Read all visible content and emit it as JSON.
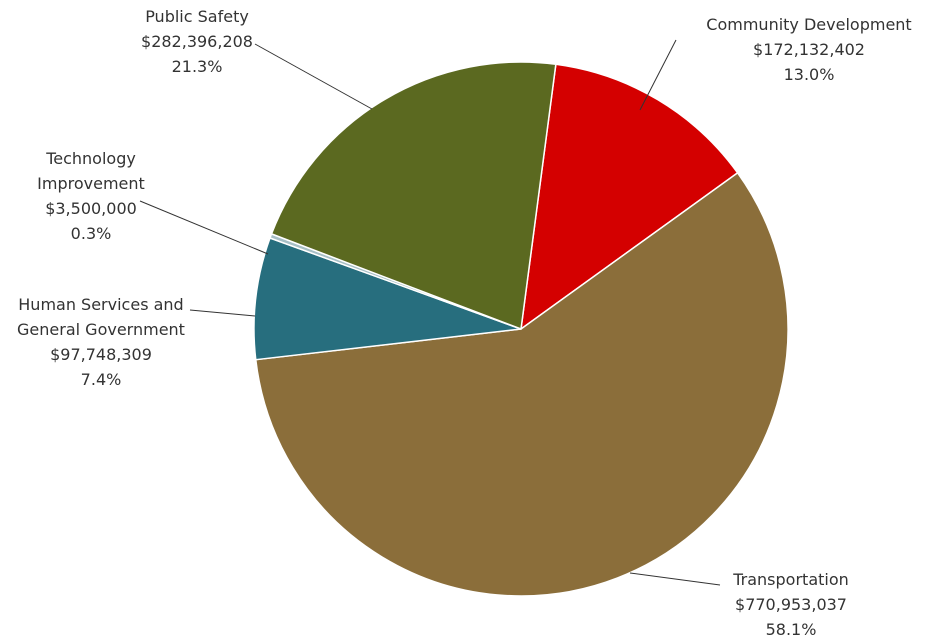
{
  "chart_data": {
    "type": "pie",
    "start_angle_deg": 7.5,
    "direction": "clockwise",
    "slices": [
      {
        "name": "Community Development",
        "label_lines": [
          "Community Development"
        ],
        "value_text": "$172,132,402",
        "percent_text": "13.0%",
        "value": 172132402,
        "percent": 13.0,
        "color": "#D40000"
      },
      {
        "name": "Transportation",
        "label_lines": [
          "Transportation"
        ],
        "value_text": "$770,953,037",
        "percent_text": "58.1%",
        "value": 770953037,
        "percent": 58.1,
        "color": "#8B6E3A"
      },
      {
        "name": "Human Services and General Government",
        "label_lines": [
          "Human Services and",
          "General Government"
        ],
        "value_text": "$97,748,309",
        "percent_text": "7.4%",
        "value": 97748309,
        "percent": 7.4,
        "color": "#276E7E"
      },
      {
        "name": "Technology Improvement",
        "label_lines": [
          "Technology",
          "Improvement"
        ],
        "value_text": "$3,500,000",
        "percent_text": "0.3%",
        "value": 3500000,
        "percent": 0.3,
        "color": "#A7BFC6"
      },
      {
        "name": "Public Safety",
        "label_lines": [
          "Public Safety"
        ],
        "value_text": "$282,396,208",
        "percent_text": "21.3%",
        "value": 282396208,
        "percent": 21.3,
        "color": "#5B6920"
      }
    ]
  }
}
